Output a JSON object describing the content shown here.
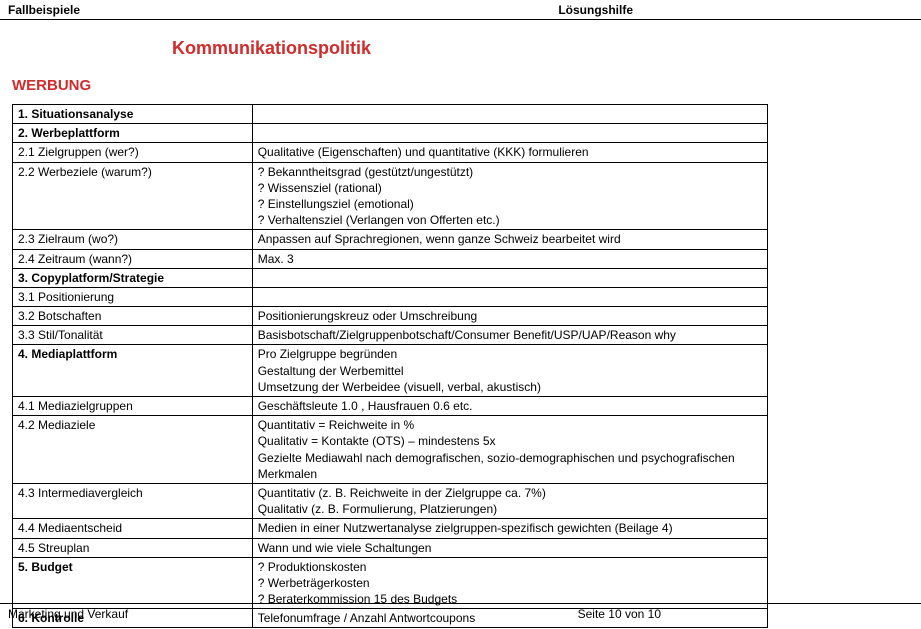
{
  "header": {
    "left": "Fallbeispiele",
    "right": "Lösungshilfe"
  },
  "main_title": "Kommunikationspolitik",
  "section_title": "WERBUNG",
  "table": {
    "rows": [
      {
        "c1": "1. Situationsanalyse",
        "c2": "",
        "c1_bold": true
      },
      {
        "c1": "2. Werbeplattform",
        "c2": "",
        "c1_bold": true
      },
      {
        "c1": "2.1 Zielgruppen (wer?)",
        "c2": "Qualitative (Eigenschaften) und quantitative (KKK) formulieren"
      },
      {
        "c1": "2.2 Werbeziele (warum?)",
        "c2": "?   Bekanntheitsgrad (gestützt/ungestützt)\n?   Wissensziel (rational)\n?   Einstellungsziel (emotional)\n?   Verhaltensziel (Verlangen von Offerten etc.)"
      },
      {
        "c1": "2.3 Zielraum (wo?)",
        "c2": "Anpassen auf Sprachregionen, wenn ganze Schweiz bearbeitet wird"
      },
      {
        "c1": "2.4 Zeitraum (wann?)",
        "c2": "Max. 3"
      },
      {
        "c1": "3. Copyplatform/Strategie",
        "c2": "",
        "c1_bold": true
      },
      {
        "c1": "3.1 Positionierung",
        "c2": ""
      },
      {
        "c1": "3.2 Botschaften",
        "c2": "Positionierungskreuz oder Umschreibung"
      },
      {
        "c1": "3.3 Stil/Tonalität",
        "c2": "Basisbotschaft/Zielgruppenbotschaft/Consumer Benefit/USP/UAP/Reason why"
      },
      {
        "c1": "4. Mediaplattform",
        "c2": "Pro Zielgruppe begründen\nGestaltung der Werbemittel\nUmsetzung der Werbeidee (visuell, verbal, akustisch)",
        "c1_bold": true
      },
      {
        "c1": "4.1 Mediazielgruppen",
        "c2": "Geschäftsleute 1.0 , Hausfrauen 0.6 etc."
      },
      {
        "c1": "4.2 Mediaziele",
        "c2": "Quantitativ = Reichweite in %\nQualitativ = Kontakte (OTS) – mindestens 5x\nGezielte Mediawahl nach demografischen, sozio-demographischen und psychografischen Merkmalen"
      },
      {
        "c1": "4.3 Intermediavergleich",
        "c2": "Quantitativ (z. B. Reichweite in der Zielgruppe ca. 7%)\nQualitativ (z. B. Formulierung, Platzierungen)"
      },
      {
        "c1": "4.4 Mediaentscheid",
        "c2": "Medien in einer Nutzwertanalyse zielgruppen-spezifisch gewichten (Beilage 4)"
      },
      {
        "c1": "4.5 Streuplan",
        "c2": "Wann und wie viele Schaltungen"
      },
      {
        "c1": "5. Budget",
        "c2": "?   Produktionskosten\n?   Werbeträgerkosten\n?        Beraterkommission 15 des Budgets",
        "c1_bold": true
      },
      {
        "c1": "6. Kontrolle",
        "c2": "Telefonumfrage / Anzahl Antwortcoupons",
        "c1_bold": true
      }
    ]
  },
  "footer": {
    "left": "Marketing und Verkauf",
    "right": "Seite 10 von 10"
  },
  "colors": {
    "accent": "#d22b2b",
    "text": "#000000",
    "border": "#000000",
    "background": "#ffffff"
  }
}
